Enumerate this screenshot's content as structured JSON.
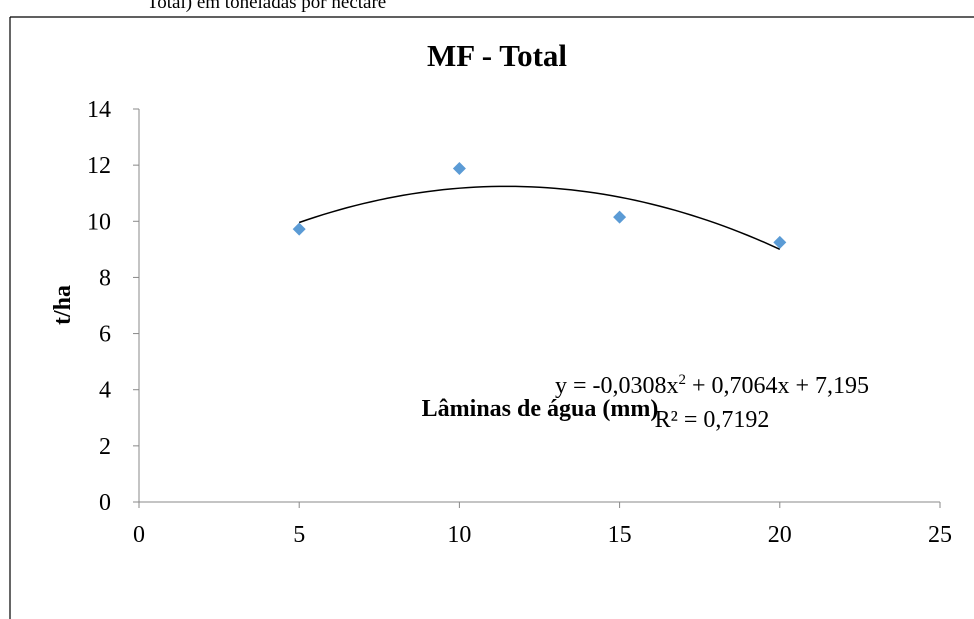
{
  "caption_fragment": "Total) em toneladas por hectare",
  "chart_data": {
    "type": "scatter",
    "title": "MF - Total",
    "xlabel": "Lâminas de água (mm)",
    "ylabel": "t/ha",
    "xlim": [
      0,
      25
    ],
    "ylim": [
      0,
      14
    ],
    "x_ticks": [
      0,
      5,
      10,
      15,
      20,
      25
    ],
    "y_ticks": [
      0,
      2,
      4,
      6,
      8,
      10,
      12,
      14
    ],
    "grid": false,
    "legend": "none",
    "series": [
      {
        "x": [
          5,
          10,
          15,
          20
        ],
        "y": [
          9.72,
          11.88,
          10.15,
          9.25
        ],
        "color": "#5B9BD5",
        "marker": "diamond"
      }
    ],
    "trendline": {
      "type": "polynomial",
      "order": 2,
      "coefficients": [
        -0.0308,
        0.7064,
        7.195
      ],
      "x_range": [
        5,
        20
      ],
      "color": "#000000"
    },
    "annotations": {
      "equation_prefix": "y = -0,0308x",
      "equation_sup": "2",
      "equation_suffix": " + 0,7064x + 7,195",
      "r_squared": "R² = 0,7192"
    }
  }
}
